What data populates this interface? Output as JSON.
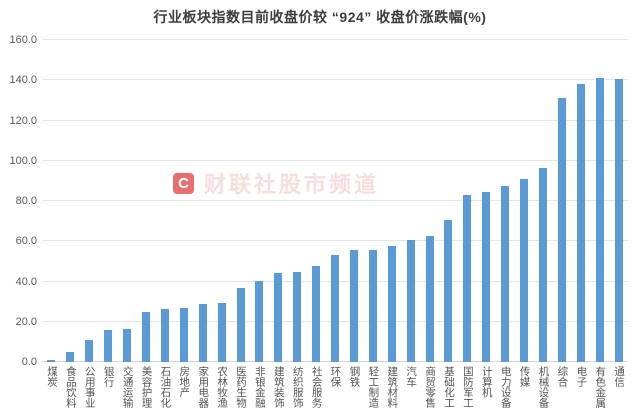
{
  "chart_data": {
    "type": "bar",
    "title": "行业板块指数目前收盘价较 “924” 收盘价涨跌幅(%)",
    "categories": [
      "煤炭",
      "食品饮料",
      "公用事业",
      "银行",
      "交通运输",
      "美容护理",
      "石油石化",
      "房地产",
      "家用电器",
      "农林牧渔",
      "医药生物",
      "非银金融",
      "建筑装饰",
      "纺织服饰",
      "社会服务",
      "环保",
      "钢铁",
      "轻工制造",
      "建筑材料",
      "汽车",
      "商贸零售",
      "基础化工",
      "国防军工",
      "计算机",
      "电力设备",
      "传媒",
      "机械设备",
      "综合",
      "电子",
      "有色金属",
      "通信"
    ],
    "values": [
      0.8,
      4.8,
      10.9,
      15.8,
      16.3,
      24.8,
      26.5,
      27.0,
      29.0,
      29.4,
      36.7,
      40.5,
      44.0,
      44.9,
      47.8,
      53.3,
      55.6,
      55.7,
      57.6,
      60.7,
      62.8,
      70.5,
      83.0,
      84.6,
      87.5,
      91.0,
      96.5,
      131.4,
      138.1,
      141.0,
      140.5
    ],
    "xlabel": "",
    "ylabel": "",
    "ylim": [
      0,
      160
    ],
    "yticks": [
      0,
      20,
      40,
      60,
      80,
      100,
      120,
      140,
      160
    ],
    "ytick_labels": [
      "0.0",
      "20.0",
      "40.0",
      "60.0",
      "80.0",
      "100.0",
      "120.0",
      "140.0",
      "160.0"
    ],
    "grid": true,
    "legend": false,
    "bar_color": "#5b9bd5"
  },
  "watermark": {
    "logo_text": "C",
    "text": "财联社股市频道",
    "logo_color": "#e25757",
    "text_color": "#eda7a7"
  }
}
